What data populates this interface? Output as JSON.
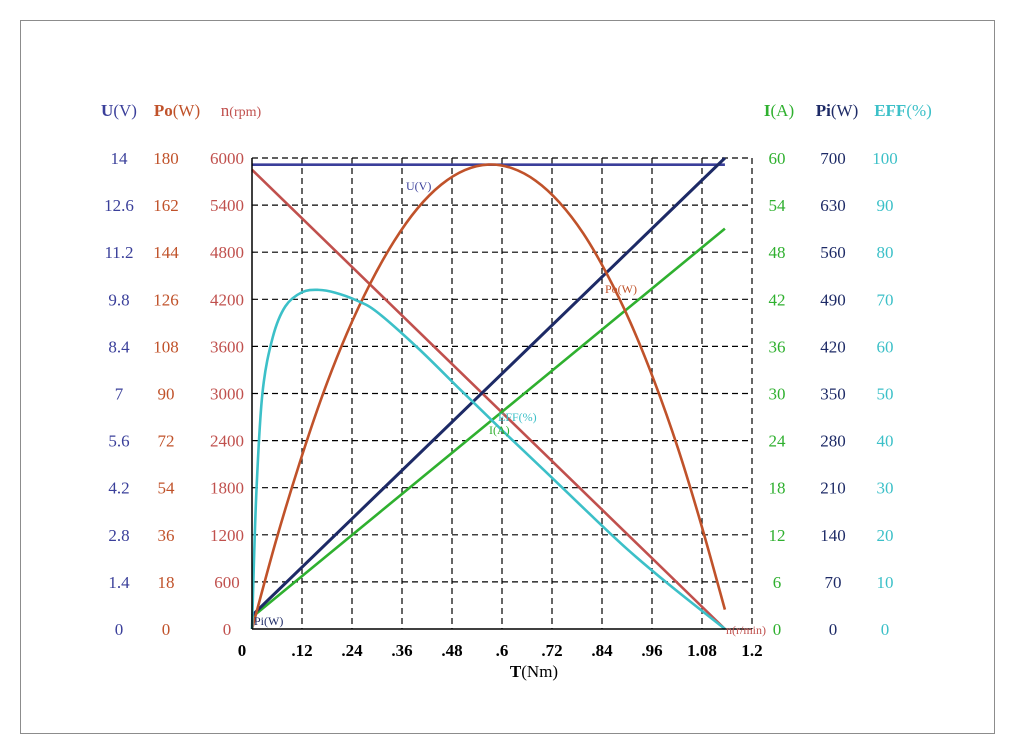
{
  "colors": {
    "U": "#3a3f9a",
    "Po": "#c0522a",
    "n": "#c0504d",
    "I": "#2fb02f",
    "Pi": "#1d2a66",
    "EFF": "#3cc0c8",
    "grid": "#000000",
    "axis_text": "#000000"
  },
  "chart_data": {
    "type": "line",
    "xlabel": "T(Nm)",
    "x_ticks": [
      "0",
      ".12",
      ".24",
      ".36",
      ".48",
      ".6",
      ".72",
      ".84",
      ".96",
      "1.08",
      "1.2"
    ],
    "xlim": [
      0,
      1.2
    ],
    "grid": true,
    "left_axes": [
      {
        "key": "U",
        "unit_main": "U",
        "unit_paren": "(V)",
        "ticks": [
          "0",
          "1.4",
          "2.8",
          "4.2",
          "5.6",
          "7",
          "8.4",
          "9.8",
          "11.2",
          "12.6",
          "14"
        ],
        "ylim": [
          0,
          14
        ]
      },
      {
        "key": "Po",
        "unit_main": "Po",
        "unit_paren": "(W)",
        "ticks": [
          "0",
          "18",
          "36",
          "54",
          "72",
          "90",
          "108",
          "126",
          "144",
          "162",
          "180"
        ],
        "ylim": [
          0,
          180
        ]
      },
      {
        "key": "n",
        "unit_main": "n",
        "unit_paren": "(rpm)",
        "ticks": [
          "0",
          "600",
          "1200",
          "1800",
          "2400",
          "3000",
          "3600",
          "4200",
          "4800",
          "5400",
          "6000"
        ],
        "ylim": [
          0,
          6000
        ]
      }
    ],
    "right_axes": [
      {
        "key": "I",
        "unit_main": "I",
        "unit_paren": "(A)",
        "ticks": [
          "0",
          "6",
          "12",
          "18",
          "24",
          "30",
          "36",
          "42",
          "48",
          "54",
          "60"
        ],
        "ylim": [
          0,
          60
        ]
      },
      {
        "key": "Pi",
        "unit_main": "Pi",
        "unit_paren": "(W)",
        "ticks": [
          "0",
          "70",
          "140",
          "210",
          "280",
          "350",
          "420",
          "490",
          "560",
          "630",
          "700"
        ],
        "ylim": [
          0,
          700
        ]
      },
      {
        "key": "EFF",
        "unit_main": "EFF",
        "unit_paren": "(%)",
        "ticks": [
          "0",
          "10",
          "20",
          "30",
          "40",
          "50",
          "60",
          "70",
          "80",
          "90",
          "100"
        ],
        "ylim": [
          0,
          100
        ]
      }
    ],
    "series": [
      {
        "name": "U(V)",
        "axis": "U",
        "x": [
          0,
          1.135
        ],
        "y": [
          13.8,
          13.8
        ]
      },
      {
        "name": "n(r/min)",
        "axis": "n",
        "x": [
          0,
          1.135
        ],
        "y": [
          5850,
          0
        ]
      },
      {
        "name": "I(A)",
        "axis": "I",
        "x": [
          0,
          1.135
        ],
        "y": [
          1.5,
          51
        ]
      },
      {
        "name": "Pi(W)",
        "axis": "Pi",
        "x": [
          0,
          1.135
        ],
        "y": [
          20,
          700
        ]
      },
      {
        "name": "Po(W)",
        "axis": "Po",
        "x": [
          0,
          0.057,
          0.114,
          0.17,
          0.227,
          0.284,
          0.341,
          0.397,
          0.454,
          0.511,
          0.568,
          0.624,
          0.681,
          0.738,
          0.795,
          0.851,
          0.908,
          0.965,
          1.022,
          1.078,
          1.135
        ],
        "y": [
          0,
          33.4,
          63.3,
          89.7,
          112.7,
          132.1,
          148.2,
          160.7,
          169.8,
          175.4,
          177.5,
          176.1,
          171.3,
          163.0,
          151.2,
          135.9,
          117.2,
          94.9,
          69.2,
          40.0,
          7.4
        ]
      },
      {
        "name": "EFF(%)",
        "axis": "EFF",
        "x": [
          0,
          0.01,
          0.025,
          0.05,
          0.08,
          0.12,
          0.16,
          0.2,
          0.25,
          0.3,
          0.4,
          0.5,
          0.6,
          0.7,
          0.8,
          0.9,
          1.0,
          1.135
        ],
        "y": [
          0,
          28,
          50,
          62,
          68.5,
          71.5,
          72,
          71.4,
          69.8,
          67.3,
          59.5,
          50.8,
          42.2,
          33.8,
          25.3,
          17,
          9.5,
          0
        ]
      }
    ],
    "curve_labels": [
      "U(V)",
      "Po(W)",
      "EFF(%)",
      "I(A)",
      "Pi(W)",
      "n(r/min)"
    ]
  }
}
